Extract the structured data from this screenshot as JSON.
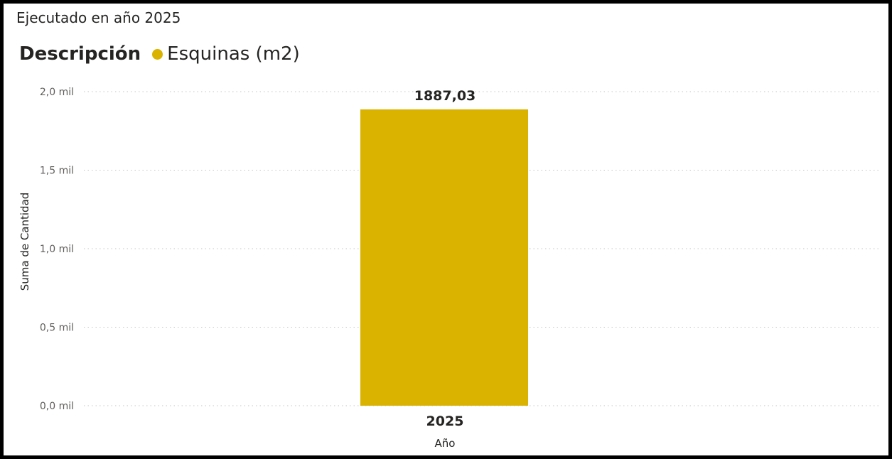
{
  "visual": {
    "title": "Ejecutado en año 2025"
  },
  "legend": {
    "title": "Descripción",
    "entries": [
      {
        "label": "Esquinas (m2)",
        "color": "#D9B300"
      }
    ]
  },
  "chart_data": {
    "type": "bar",
    "categories": [
      "2025"
    ],
    "series": [
      {
        "name": "Esquinas (m2)",
        "values": [
          1887.03
        ],
        "color": "#D9B300"
      }
    ],
    "data_labels": [
      "1887,03"
    ],
    "xlabel": "Año",
    "ylabel": "Suma de Cantidad",
    "ylim": [
      0,
      2000
    ],
    "yticks": [
      {
        "value": 0,
        "label": "0,0 mil"
      },
      {
        "value": 500,
        "label": "0,5 mil"
      },
      {
        "value": 1000,
        "label": "1,0 mil"
      },
      {
        "value": 1500,
        "label": "1,5 mil"
      },
      {
        "value": 2000,
        "label": "2,0 mil"
      }
    ],
    "grid": true,
    "legend_position": "top-left"
  }
}
